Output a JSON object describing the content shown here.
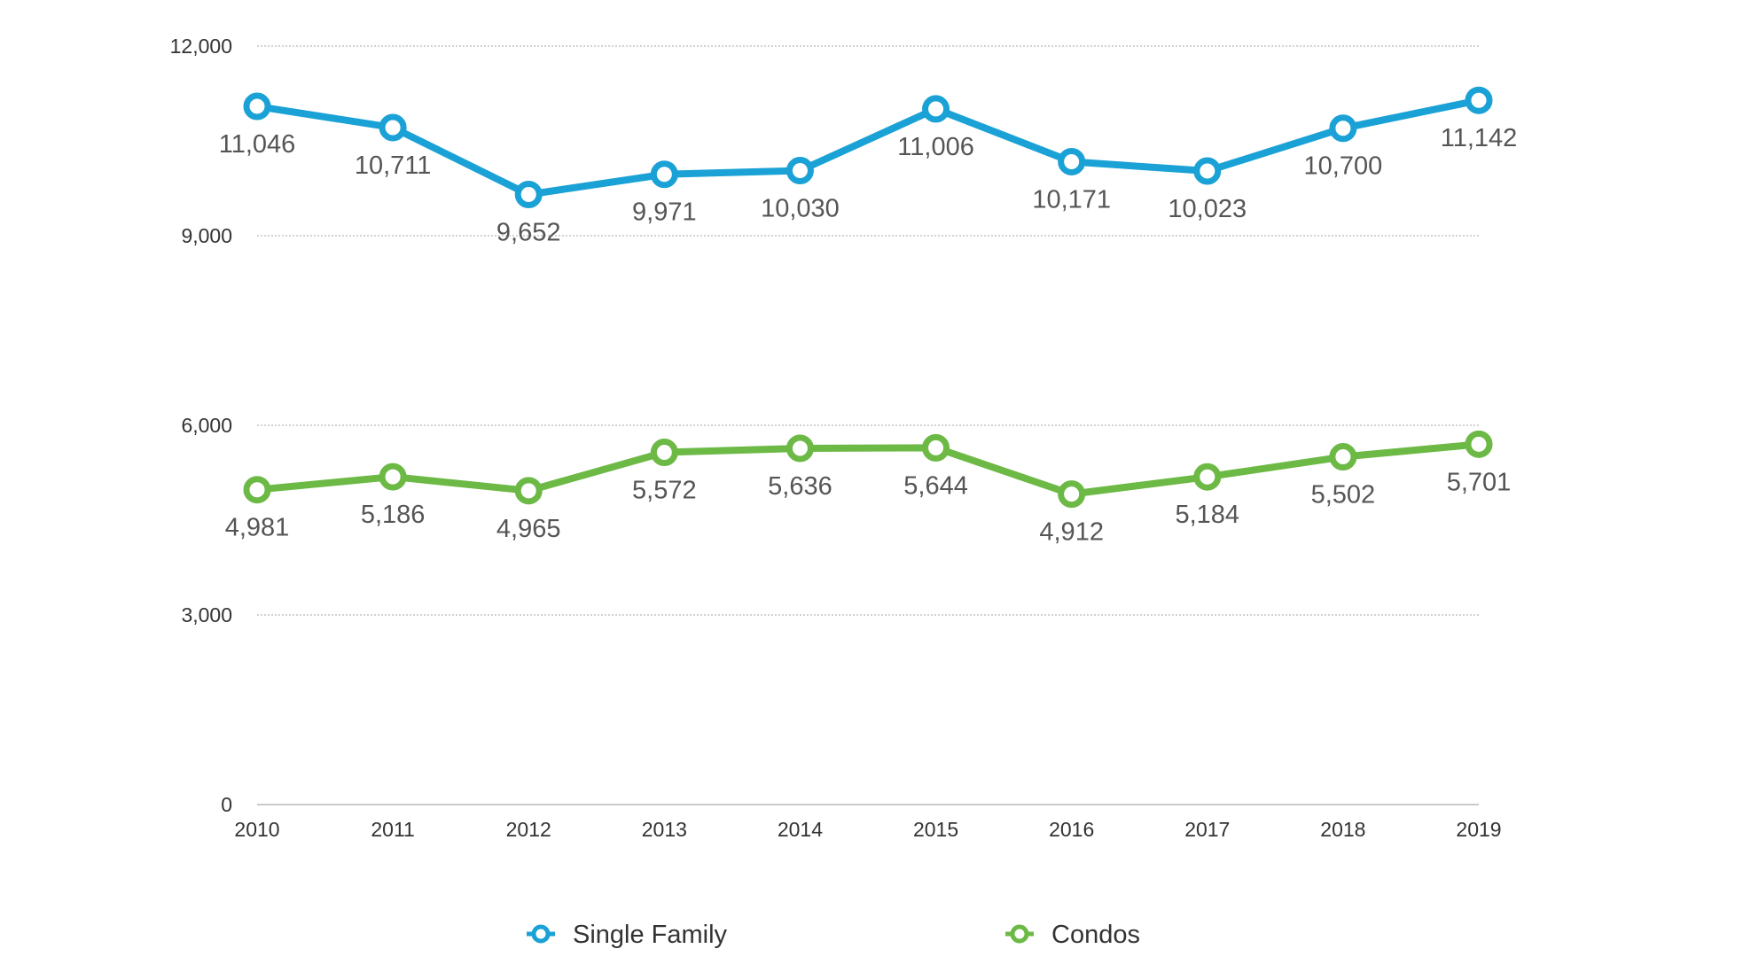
{
  "chart_data": {
    "type": "line",
    "title": "",
    "xlabel": "",
    "ylabel": "",
    "categories": [
      "2010",
      "2011",
      "2012",
      "2013",
      "2014",
      "2015",
      "2016",
      "2017",
      "2018",
      "2019"
    ],
    "ylim": [
      0,
      12000
    ],
    "yticks": [
      0,
      3000,
      6000,
      9000,
      12000
    ],
    "ytick_labels": [
      "0",
      "3,000",
      "6,000",
      "9,000",
      "12,000"
    ],
    "grid": true,
    "legend_position": "bottom",
    "series": [
      {
        "name": "Single Family",
        "color": "#1aa2d6",
        "values": [
          11046,
          10711,
          9652,
          9971,
          10030,
          11006,
          10171,
          10023,
          10700,
          11142
        ],
        "labels": [
          "11,046",
          "10,711",
          "9,652",
          "9,971",
          "10,030",
          "11,006",
          "10,171",
          "10,023",
          "10,700",
          "11,142"
        ]
      },
      {
        "name": "Condos",
        "color": "#6cb945",
        "values": [
          4981,
          5186,
          4965,
          5572,
          5636,
          5644,
          4912,
          5184,
          5502,
          5701
        ],
        "labels": [
          "4,981",
          "5,186",
          "4,965",
          "5,572",
          "5,636",
          "5,644",
          "4,912",
          "5,184",
          "5,502",
          "5,701"
        ]
      }
    ]
  }
}
